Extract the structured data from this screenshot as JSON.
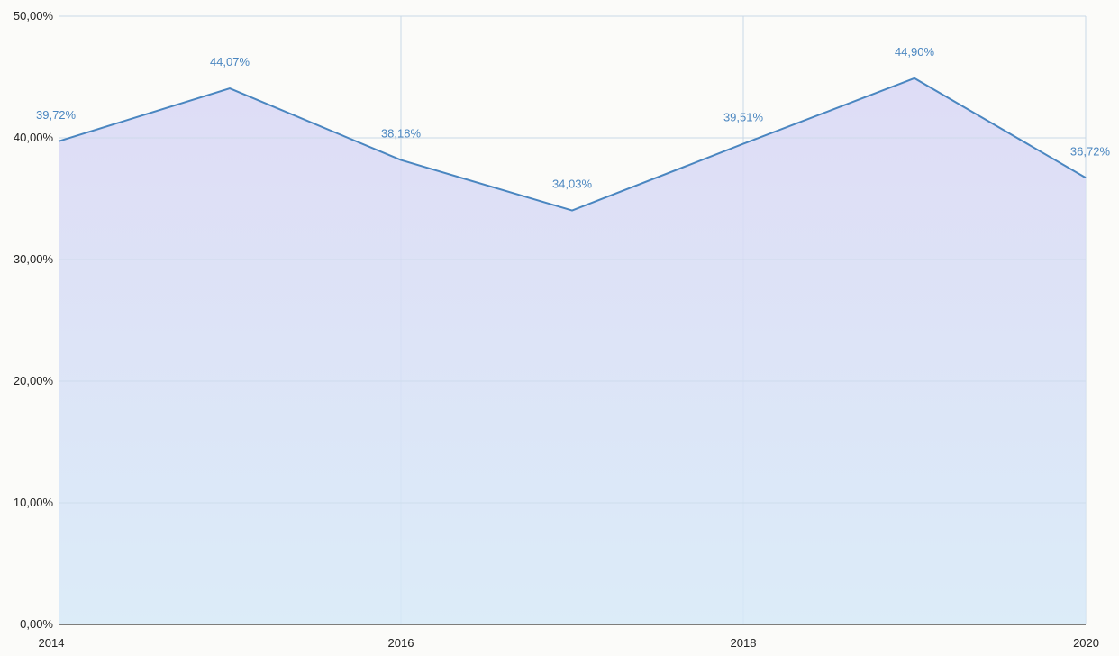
{
  "chart_data": {
    "type": "area",
    "x": [
      "2014",
      "2015",
      "2016",
      "2017",
      "2018",
      "2019",
      "2020"
    ],
    "values": [
      39.72,
      44.07,
      38.18,
      34.03,
      39.51,
      44.9,
      36.72
    ],
    "data_labels": [
      "39,72%",
      "44,07%",
      "38,18%",
      "34,03%",
      "39,51%",
      "44,90%",
      "36,72%"
    ],
    "x_tick_labels": [
      "2014",
      "2016",
      "2018",
      "2020"
    ],
    "y_ticks": [
      0,
      10,
      20,
      30,
      40,
      50
    ],
    "y_tick_labels": [
      "0,00%",
      "10,00%",
      "20,00%",
      "30,00%",
      "40,00%",
      "50,00%"
    ],
    "ylim": [
      0,
      50
    ],
    "xlim": [
      2014,
      2020
    ],
    "grid": true,
    "colors": {
      "line": "#4a86c0",
      "label": "#4a86c0",
      "fill_top": "#d9d7f5",
      "fill_bottom": "#d6e9f8",
      "grid": "#c9d8e6"
    }
  }
}
